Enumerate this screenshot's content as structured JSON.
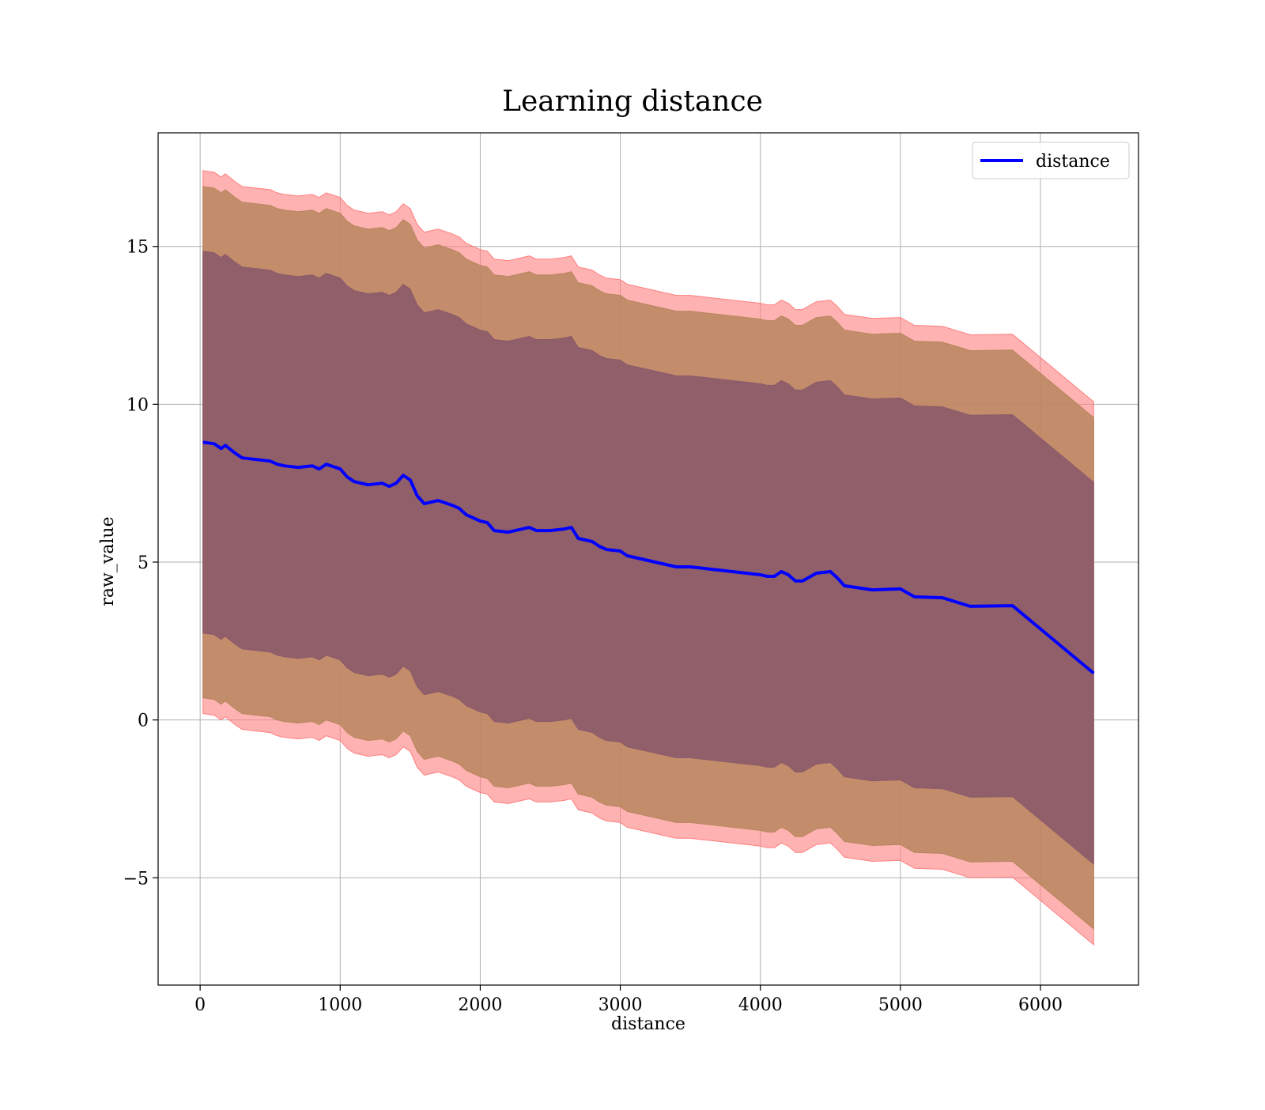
{
  "chart_data": {
    "type": "line",
    "title": "Learning distance",
    "xlabel": "distance",
    "ylabel": "raw_value",
    "xlim": [
      -300,
      6700
    ],
    "ylim": [
      -8.4,
      18.6
    ],
    "xticks": [
      0,
      1000,
      2000,
      3000,
      4000,
      5000,
      6000
    ],
    "xtick_labels": [
      "0",
      "1000",
      "2000",
      "3000",
      "4000",
      "5000",
      "6000"
    ],
    "yticks": [
      -5,
      0,
      5,
      10,
      15
    ],
    "ytick_labels": [
      "−5",
      "0",
      "5",
      "10",
      "15"
    ],
    "grid": true,
    "legend": {
      "position": "top-right",
      "entries": [
        "distance"
      ]
    },
    "colors": {
      "line": "#0000ff",
      "band_outer": "#ff7f7f",
      "band_middle": "#b8865e",
      "band_inner": "#8c5a6a",
      "grid": "#b0b0b0"
    },
    "series": [
      {
        "name": "distance",
        "x": [
          20,
          100,
          150,
          180,
          250,
          300,
          400,
          500,
          550,
          600,
          700,
          800,
          850,
          900,
          1000,
          1050,
          1100,
          1200,
          1300,
          1350,
          1400,
          1450,
          1500,
          1550,
          1600,
          1700,
          1800,
          1850,
          1900,
          2000,
          2050,
          2100,
          2200,
          2300,
          2350,
          2400,
          2500,
          2600,
          2650,
          2700,
          2800,
          2850,
          2900,
          3000,
          3050,
          3100,
          3200,
          3300,
          3400,
          3500,
          3600,
          3700,
          3800,
          3900,
          4000,
          4050,
          4100,
          4150,
          4200,
          4250,
          4300,
          4400,
          4500,
          4550,
          4600,
          4800,
          5000,
          5100,
          5300,
          5500,
          5800,
          6380
        ],
        "y": [
          8.8,
          8.75,
          8.6,
          8.7,
          8.45,
          8.3,
          8.25,
          8.2,
          8.1,
          8.05,
          8.0,
          8.05,
          7.95,
          8.1,
          7.95,
          7.7,
          7.55,
          7.45,
          7.5,
          7.4,
          7.5,
          7.75,
          7.6,
          7.1,
          6.85,
          6.95,
          6.8,
          6.7,
          6.5,
          6.3,
          6.25,
          6.0,
          5.95,
          6.05,
          6.1,
          6.0,
          6.0,
          6.05,
          6.1,
          5.75,
          5.65,
          5.5,
          5.4,
          5.35,
          5.2,
          5.15,
          5.05,
          4.95,
          4.85,
          4.85,
          4.8,
          4.75,
          4.7,
          4.65,
          4.6,
          4.55,
          4.55,
          4.7,
          4.6,
          4.4,
          4.4,
          4.65,
          4.7,
          4.5,
          4.25,
          4.12,
          4.15,
          3.9,
          3.87,
          3.6,
          3.62,
          1.48
        ]
      }
    ],
    "bands": [
      {
        "name": "outer",
        "offset_upper": 8.6,
        "offset_lower": 8.6
      },
      {
        "name": "middle",
        "offset_upper": 8.1,
        "offset_lower": 8.1
      },
      {
        "name": "inner",
        "offset_upper": 6.05,
        "offset_lower": 6.05
      }
    ]
  }
}
